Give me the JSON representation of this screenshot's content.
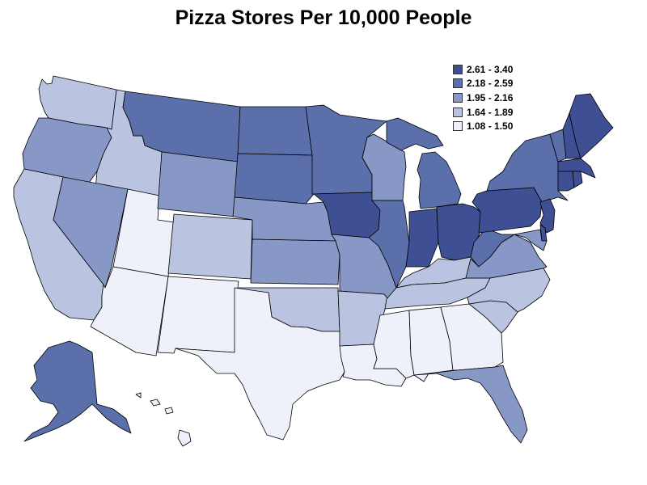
{
  "title": "Pizza Stores Per 10,000 People",
  "legend": [
    {
      "label": "2.61 - 3.40",
      "color": "#3f4f93"
    },
    {
      "label": "2.18 - 2.59",
      "color": "#5b6fab"
    },
    {
      "label": "1.95 - 2.16",
      "color": "#8797c6"
    },
    {
      "label": "1.64 - 1.89",
      "color": "#bac4e0"
    },
    {
      "label": "1.08 - 1.50",
      "color": "#eef1f9"
    }
  ],
  "chart_data": {
    "type": "choropleth",
    "region": "United States",
    "bins": [
      "2.61 - 3.40",
      "2.18 - 2.59",
      "1.95 - 2.16",
      "1.64 - 1.89",
      "1.08 - 1.50"
    ],
    "states": [
      {
        "state": "WA",
        "bin": "1.64 - 1.89"
      },
      {
        "state": "OR",
        "bin": "1.95 - 2.16"
      },
      {
        "state": "CA",
        "bin": "1.64 - 1.89"
      },
      {
        "state": "ID",
        "bin": "1.64 - 1.89"
      },
      {
        "state": "NV",
        "bin": "1.95 - 2.16"
      },
      {
        "state": "UT",
        "bin": "1.08 - 1.50"
      },
      {
        "state": "AZ",
        "bin": "1.08 - 1.50"
      },
      {
        "state": "MT",
        "bin": "2.18 - 2.59"
      },
      {
        "state": "WY",
        "bin": "1.95 - 2.16"
      },
      {
        "state": "CO",
        "bin": "1.64 - 1.89"
      },
      {
        "state": "NM",
        "bin": "1.08 - 1.50"
      },
      {
        "state": "ND",
        "bin": "2.18 - 2.59"
      },
      {
        "state": "SD",
        "bin": "2.18 - 2.59"
      },
      {
        "state": "NE",
        "bin": "1.95 - 2.16"
      },
      {
        "state": "KS",
        "bin": "1.95 - 2.16"
      },
      {
        "state": "OK",
        "bin": "1.64 - 1.89"
      },
      {
        "state": "TX",
        "bin": "1.08 - 1.50"
      },
      {
        "state": "MN",
        "bin": "2.18 - 2.59"
      },
      {
        "state": "IA",
        "bin": "2.61 - 3.40"
      },
      {
        "state": "MO",
        "bin": "1.95 - 2.16"
      },
      {
        "state": "AR",
        "bin": "1.64 - 1.89"
      },
      {
        "state": "LA",
        "bin": "1.08 - 1.50"
      },
      {
        "state": "WI",
        "bin": "1.95 - 2.16"
      },
      {
        "state": "IL",
        "bin": "2.18 - 2.59"
      },
      {
        "state": "MI",
        "bin": "2.18 - 2.59"
      },
      {
        "state": "IN",
        "bin": "2.61 - 3.40"
      },
      {
        "state": "OH",
        "bin": "2.61 - 3.40"
      },
      {
        "state": "KY",
        "bin": "1.64 - 1.89"
      },
      {
        "state": "TN",
        "bin": "1.64 - 1.89"
      },
      {
        "state": "MS",
        "bin": "1.08 - 1.50"
      },
      {
        "state": "AL",
        "bin": "1.08 - 1.50"
      },
      {
        "state": "GA",
        "bin": "1.08 - 1.50"
      },
      {
        "state": "FL",
        "bin": "1.95 - 2.16"
      },
      {
        "state": "SC",
        "bin": "1.64 - 1.89"
      },
      {
        "state": "NC",
        "bin": "1.64 - 1.89"
      },
      {
        "state": "VA",
        "bin": "1.95 - 2.16"
      },
      {
        "state": "WV",
        "bin": "2.18 - 2.59"
      },
      {
        "state": "PA",
        "bin": "2.61 - 3.40"
      },
      {
        "state": "NY",
        "bin": "2.18 - 2.59"
      },
      {
        "state": "VT",
        "bin": "2.18 - 2.59"
      },
      {
        "state": "NH",
        "bin": "2.61 - 3.40"
      },
      {
        "state": "ME",
        "bin": "2.61 - 3.40"
      },
      {
        "state": "MA",
        "bin": "2.61 - 3.40"
      },
      {
        "state": "CT",
        "bin": "2.61 - 3.40"
      },
      {
        "state": "RI",
        "bin": "2.61 - 3.40"
      },
      {
        "state": "NJ",
        "bin": "2.61 - 3.40"
      },
      {
        "state": "DE",
        "bin": "2.61 - 3.40"
      },
      {
        "state": "MD",
        "bin": "1.95 - 2.16"
      },
      {
        "state": "AK",
        "bin": "2.18 - 2.59"
      },
      {
        "state": "HI",
        "bin": "1.08 - 1.50"
      }
    ]
  }
}
